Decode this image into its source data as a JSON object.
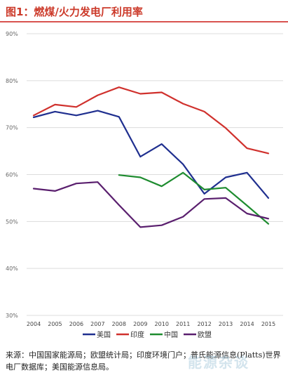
{
  "title": "图1：燃煤/火力发电厂利用率",
  "source_text": "来源：中国国家能源局；欧盟统计局；印度环境门户；普氏能源信息(Platts)世界电厂数据库；美国能源信息局。",
  "watermark": "能源杂谈",
  "chart_data": {
    "type": "line",
    "x": [
      2004,
      2005,
      2006,
      2007,
      2008,
      2009,
      2010,
      2011,
      2012,
      2013,
      2014,
      2015
    ],
    "yticks": [
      "30%",
      "40%",
      "50%",
      "60%",
      "70%",
      "80%",
      "90%"
    ],
    "ylim": [
      30,
      90
    ],
    "grid": true,
    "legend_position": "bottom",
    "series": [
      {
        "name": "美国",
        "color": "#1f2f8f",
        "values": [
          72.2,
          73.4,
          72.6,
          73.6,
          72.3,
          63.8,
          66.5,
          62.2,
          55.9,
          59.4,
          60.4,
          55.0
        ]
      },
      {
        "name": "印度",
        "color": "#d0312d",
        "values": [
          72.6,
          74.9,
          74.4,
          76.9,
          78.6,
          77.2,
          77.5,
          75.1,
          73.4,
          69.9,
          65.6,
          64.5
        ]
      },
      {
        "name": "中国",
        "color": "#1e8c2f",
        "values": [
          null,
          null,
          null,
          null,
          59.9,
          59.4,
          57.5,
          60.4,
          56.8,
          57.2,
          53.4,
          49.5
        ]
      },
      {
        "name": "欧盟",
        "color": "#5a1f6e",
        "values": [
          57.0,
          56.5,
          58.1,
          58.4,
          53.5,
          48.8,
          49.2,
          51.0,
          54.8,
          55.0,
          51.7,
          50.6
        ]
      }
    ]
  }
}
